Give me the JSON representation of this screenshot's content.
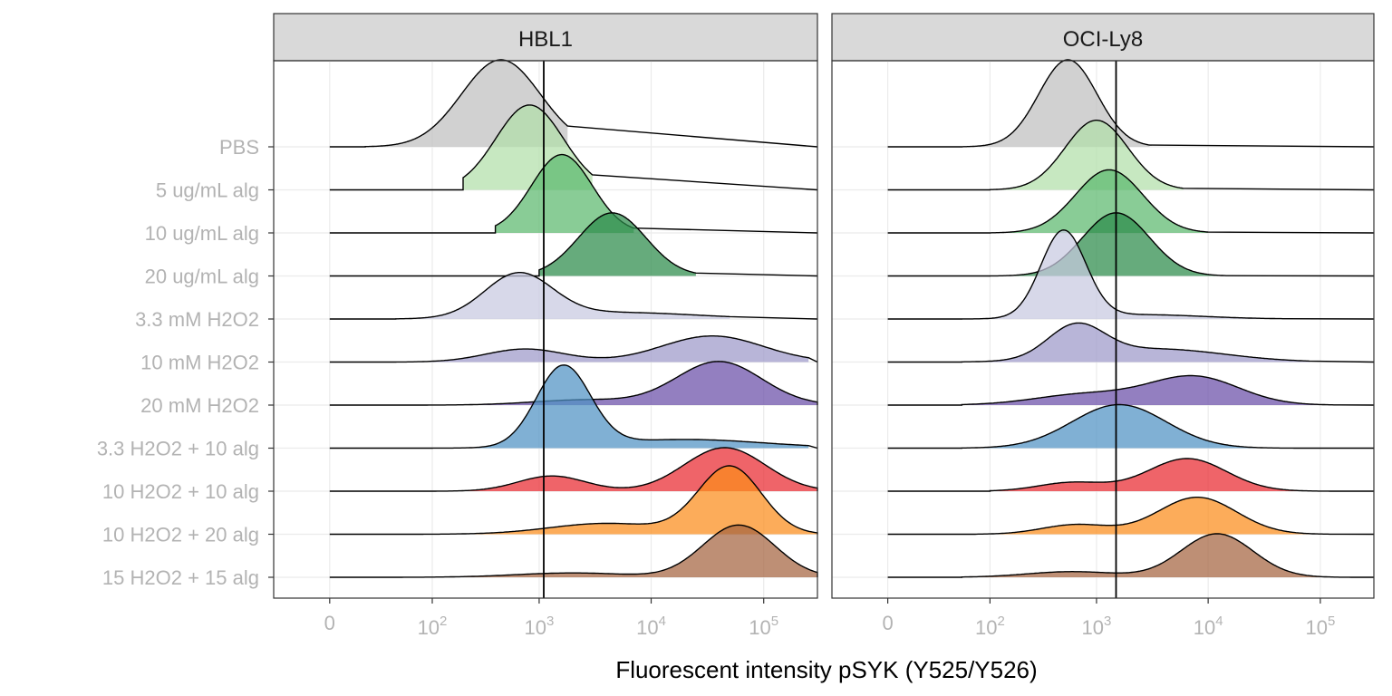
{
  "chart_data": {
    "type": "ridgeline",
    "xlabel": "Fluorescent intensity pSYK (Y525/Y526)",
    "x_scale": "biexponential (linear near 0, log above ~10^2)",
    "x_ticks": [
      "0",
      "10^2",
      "10^3",
      "10^4",
      "10^5"
    ],
    "x_tick_values": [
      0,
      100,
      1000,
      10000,
      100000
    ],
    "x_range": [
      -30,
      300000
    ],
    "grid": true,
    "categories": [
      "PBS",
      "5 ug/mL alg",
      "10 ug/mL alg",
      "20 ug/mL alg",
      "3.3 mM H2O2",
      "10 mM H2O2",
      "20 mM H2O2",
      "3.3 H2O2 + 10 alg",
      "10 H2O2 + 10 alg",
      "10 H2O2 + 20 alg",
      "15 H2O2 + 15 alg"
    ],
    "colors": {
      "PBS": "#bfbfbf",
      "5 ug/mL alg": "#b2dfa9",
      "10 ug/mL alg": "#5cb86e",
      "20 ug/mL alg": "#2b8a49",
      "3.3 mM H2O2": "#c8c9e0",
      "10 mM H2O2": "#9c98c9",
      "20 mM H2O2": "#6a4da8",
      "3.3 H2O2 + 10 alg": "#4f91c3",
      "10 H2O2 + 10 alg": "#e9282f",
      "10 H2O2 + 20 alg": "#fb8c1b",
      "15 H2O2 + 15 alg": "#a56440"
    },
    "panels": [
      {
        "title": "HBL1",
        "threshold": 1100,
        "series": [
          {
            "name": "PBS",
            "peaks": [
              [
                450,
                0.35,
                2.0
              ]
            ],
            "min_x": 15,
            "max_x": 1800
          },
          {
            "name": "5 ug/mL alg",
            "peaks": [
              [
                820,
                0.3,
                1.95
              ]
            ],
            "min_x": 200,
            "max_x": 3000
          },
          {
            "name": "10 ug/mL alg",
            "peaks": [
              [
                1600,
                0.27,
                1.8
              ]
            ],
            "min_x": 400,
            "max_x": 7000
          },
          {
            "name": "20 ug/mL alg",
            "peaks": [
              [
                4500,
                0.3,
                1.45
              ]
            ],
            "min_x": 1000,
            "max_x": 25000
          },
          {
            "name": "3.3 mM H2O2",
            "peaks": [
              [
                650,
                0.3,
                1.0
              ],
              [
                5000,
                0.7,
                0.15
              ]
            ],
            "min_x": 40,
            "max_x": 50000
          },
          {
            "name": "10 mM H2O2",
            "peaks": [
              [
                750,
                0.35,
                0.3
              ],
              [
                35000,
                0.45,
                0.6
              ]
            ],
            "min_x": 40,
            "max_x": 250000
          },
          {
            "name": "20 mM H2O2",
            "peaks": [
              [
                2500,
                0.45,
                0.12
              ],
              [
                40000,
                0.38,
                1.0
              ]
            ],
            "min_x": 30,
            "max_x": 300000
          },
          {
            "name": "3.3 H2O2 + 10 alg",
            "peaks": [
              [
                1650,
                0.24,
                1.85
              ],
              [
                20000,
                0.7,
                0.2
              ]
            ],
            "min_x": 100,
            "max_x": 250000
          },
          {
            "name": "10 H2O2 + 10 alg",
            "peaks": [
              [
                1300,
                0.3,
                0.35
              ],
              [
                45000,
                0.36,
                1.0
              ]
            ],
            "min_x": 70,
            "max_x": 300000
          },
          {
            "name": "10 H2O2 + 20 alg",
            "peaks": [
              [
                4000,
                0.5,
                0.25
              ],
              [
                50000,
                0.28,
                1.55
              ]
            ],
            "min_x": 80,
            "max_x": 300000
          },
          {
            "name": "15 H2O2 + 15 alg",
            "peaks": [
              [
                2000,
                0.5,
                0.1
              ],
              [
                60000,
                0.32,
                1.2
              ]
            ],
            "min_x": 30,
            "max_x": 300000
          }
        ]
      },
      {
        "title": "OCI-Ly8",
        "threshold": 1500,
        "series": [
          {
            "name": "PBS",
            "peaks": [
              [
                550,
                0.26,
                2.0
              ]
            ],
            "min_x": 50,
            "max_x": 3000
          },
          {
            "name": "5 ug/mL alg",
            "peaks": [
              [
                1000,
                0.28,
                1.6
              ]
            ],
            "min_x": 100,
            "max_x": 6000
          },
          {
            "name": "10 ug/mL alg",
            "peaks": [
              [
                1300,
                0.3,
                1.45
              ]
            ],
            "min_x": 100,
            "max_x": 10000
          },
          {
            "name": "20 ug/mL alg",
            "peaks": [
              [
                1500,
                0.3,
                1.45
              ]
            ],
            "min_x": 100,
            "max_x": 15000
          },
          {
            "name": "3.3 mM H2O2",
            "peaks": [
              [
                500,
                0.2,
                2.0
              ],
              [
                2500,
                0.55,
                0.1
              ]
            ],
            "min_x": 50,
            "max_x": 50000
          },
          {
            "name": "10 mM H2O2",
            "peaks": [
              [
                650,
                0.25,
                0.75
              ],
              [
                3500,
                0.6,
                0.3
              ]
            ],
            "min_x": 50,
            "max_x": 80000
          },
          {
            "name": "20 mM H2O2",
            "peaks": [
              [
                800,
                0.45,
                0.25
              ],
              [
                7500,
                0.4,
                0.65
              ]
            ],
            "min_x": 50,
            "max_x": 150000
          },
          {
            "name": "3.3 H2O2 + 10 alg",
            "peaks": [
              [
                1600,
                0.42,
                1.0
              ]
            ],
            "min_x": 50,
            "max_x": 60000
          },
          {
            "name": "10 H2O2 + 10 alg",
            "peaks": [
              [
                600,
                0.3,
                0.2
              ],
              [
                6500,
                0.35,
                0.75
              ]
            ],
            "min_x": 100,
            "max_x": 150000
          },
          {
            "name": "10 H2O2 + 20 alg",
            "peaks": [
              [
                650,
                0.3,
                0.22
              ],
              [
                8000,
                0.35,
                0.85
              ]
            ],
            "min_x": 70,
            "max_x": 150000
          },
          {
            "name": "15 H2O2 + 15 alg",
            "peaks": [
              [
                600,
                0.4,
                0.13
              ],
              [
                12000,
                0.32,
                1.0
              ]
            ],
            "min_x": 50,
            "max_x": 200000
          }
        ]
      }
    ]
  }
}
